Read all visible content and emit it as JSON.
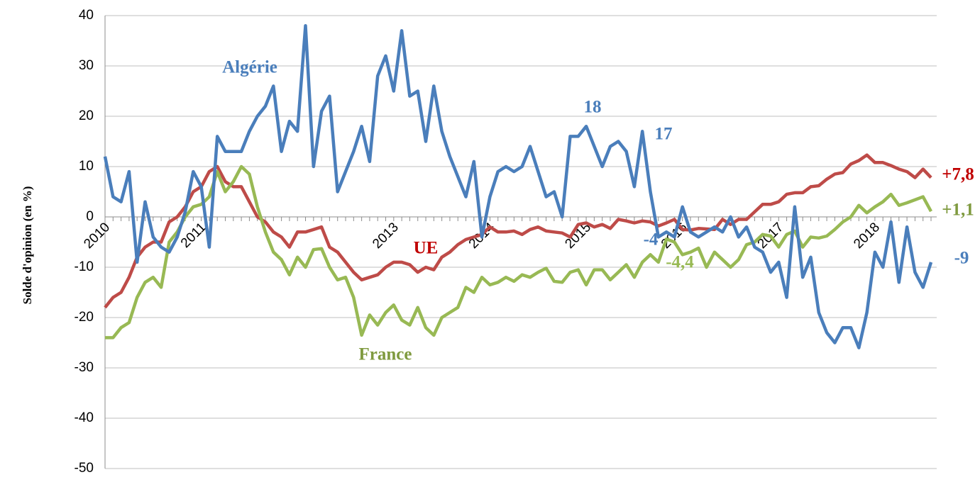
{
  "chart_data": {
    "type": "line",
    "y_label": "Solde d'opinion (en %)",
    "categories": [
      "2010",
      null,
      null,
      null,
      null,
      null,
      null,
      null,
      null,
      null,
      null,
      null,
      "2011",
      null,
      null,
      null,
      null,
      null,
      null,
      null,
      null,
      null,
      null,
      null,
      null,
      null,
      null,
      null,
      null,
      null,
      null,
      null,
      null,
      null,
      null,
      null,
      "2013",
      null,
      null,
      null,
      null,
      null,
      null,
      null,
      null,
      null,
      null,
      null,
      "2014",
      null,
      null,
      null,
      null,
      null,
      null,
      null,
      null,
      null,
      null,
      null,
      "2015",
      null,
      null,
      null,
      null,
      null,
      null,
      null,
      null,
      null,
      null,
      null,
      "2016",
      null,
      null,
      null,
      null,
      null,
      null,
      null,
      null,
      null,
      null,
      null,
      "2017",
      null,
      null,
      null,
      null,
      null,
      null,
      null,
      null,
      null,
      null,
      null,
      "2018",
      null,
      null,
      null,
      null,
      null,
      null,
      null
    ],
    "series": [
      {
        "name": "Algérie",
        "color": "#4a7ebb",
        "values": [
          12,
          4,
          3,
          9,
          -9,
          3,
          -4,
          -6,
          -7,
          -4,
          1,
          9,
          6,
          -6,
          16,
          13,
          13,
          13,
          17,
          20,
          22,
          26,
          13,
          19,
          17,
          38,
          10,
          21,
          24,
          5,
          9,
          13,
          18,
          11,
          28,
          32,
          25,
          37,
          24,
          25,
          15,
          26,
          17,
          12,
          8,
          4,
          11,
          -4,
          4,
          9,
          10,
          9,
          10,
          14,
          9,
          4,
          5,
          0,
          16,
          16,
          18,
          14,
          10,
          14,
          15,
          13,
          6,
          17,
          5,
          -4,
          -3,
          -4,
          2,
          -3,
          -4,
          -3,
          -2,
          -3,
          0,
          -4,
          -2,
          -6,
          -7,
          -11,
          -9,
          -16,
          2,
          -12,
          -8,
          -19,
          -23,
          -25,
          -22,
          -22,
          -26,
          -19,
          -7,
          -10,
          -1,
          -13,
          -2,
          -11,
          -14,
          -9
        ]
      },
      {
        "name": "UE",
        "color": "#be4b48",
        "values": [
          -18,
          -16,
          -15,
          -12,
          -8,
          -6,
          -5,
          -5,
          -1,
          0,
          2,
          5,
          6,
          9,
          10,
          7,
          6,
          6,
          3,
          0,
          -1,
          -3,
          -4,
          -6,
          -3,
          -3,
          -2.5,
          -2,
          -6,
          -7,
          -9,
          -11,
          -12.5,
          -12,
          -11.5,
          -10,
          -9,
          -9,
          -9.5,
          -11,
          -10,
          -10.5,
          -8,
          -7,
          -5.5,
          -4.5,
          -4,
          -3.5,
          -2,
          -3,
          -3,
          -2.8,
          -3.5,
          -2.5,
          -2,
          -2.8,
          -3,
          -3.2,
          -4,
          -1.5,
          -1.2,
          -2,
          -1.5,
          -2.3,
          -0.5,
          -0.8,
          -1.2,
          -0.8,
          -1,
          -1.8,
          -1.2,
          -0.5,
          -2.5,
          -2.6,
          -2.3,
          -2.4,
          -2.5,
          -0.5,
          -1.5,
          -0.5,
          -0.5,
          1,
          2.5,
          2.5,
          3,
          4.5,
          4.8,
          4.8,
          6,
          6.2,
          7.5,
          8.5,
          8.8,
          10.5,
          11.2,
          12.3,
          10.8,
          10.8,
          10.2,
          9.5,
          9,
          7.8,
          9.5,
          7.8
        ]
      },
      {
        "name": "France",
        "color": "#98b954",
        "values": [
          -24,
          -24,
          -22,
          -21,
          -16,
          -13,
          -12,
          -14,
          -5,
          -3,
          0,
          2,
          2.5,
          4,
          9,
          5,
          7,
          10,
          8.5,
          2,
          -3,
          -7,
          -8.5,
          -11.5,
          -8,
          -10,
          -6.5,
          -6.3,
          -10,
          -12.5,
          -12,
          -16,
          -23.5,
          -19.5,
          -21.5,
          -19,
          -17.5,
          -20.5,
          -21.5,
          -18,
          -22,
          -23.5,
          -20,
          -19,
          -18,
          -14,
          -15,
          -12,
          -13.5,
          -13,
          -12,
          -12.8,
          -11.5,
          -12,
          -11,
          -10.2,
          -12.8,
          -13,
          -11,
          -10.5,
          -13.5,
          -10.5,
          -10.5,
          -12.5,
          -11,
          -9.5,
          -12,
          -9,
          -7.5,
          -9,
          -4.4,
          -5,
          -7.5,
          -7,
          -6.2,
          -10,
          -7,
          -8.5,
          -10,
          -8.5,
          -5.5,
          -5,
          -3.5,
          -3.8,
          -6,
          -3.5,
          -2.8,
          -6,
          -4,
          -4.2,
          -3.8,
          -2.5,
          -1,
          0,
          2.3,
          0.8,
          2,
          3,
          4.5,
          2.3,
          2.8,
          3.4,
          4,
          1.1
        ]
      }
    ],
    "annotations": [
      {
        "text": "Algérie",
        "color": "#4a7ebb"
      },
      {
        "text": "18",
        "color": "#4a7ebb"
      },
      {
        "text": "17",
        "color": "#4a7ebb"
      },
      {
        "text": "-4",
        "color": "#4a7ebb"
      },
      {
        "text": "-4,4",
        "color": "#98b954"
      },
      {
        "text": "UE",
        "color": "#c00000"
      },
      {
        "text": "France",
        "color": "#7f9a3f"
      },
      {
        "text": "+7,8",
        "color": "#c00000"
      },
      {
        "text": "+1,1",
        "color": "#7f9a3f"
      },
      {
        "text": "-9",
        "color": "#4a7ebb"
      }
    ],
    "ylim": [
      -50,
      40
    ],
    "yticks": [
      -50,
      -40,
      -30,
      -20,
      -10,
      0,
      10,
      20,
      30,
      40
    ],
    "grid": true
  }
}
